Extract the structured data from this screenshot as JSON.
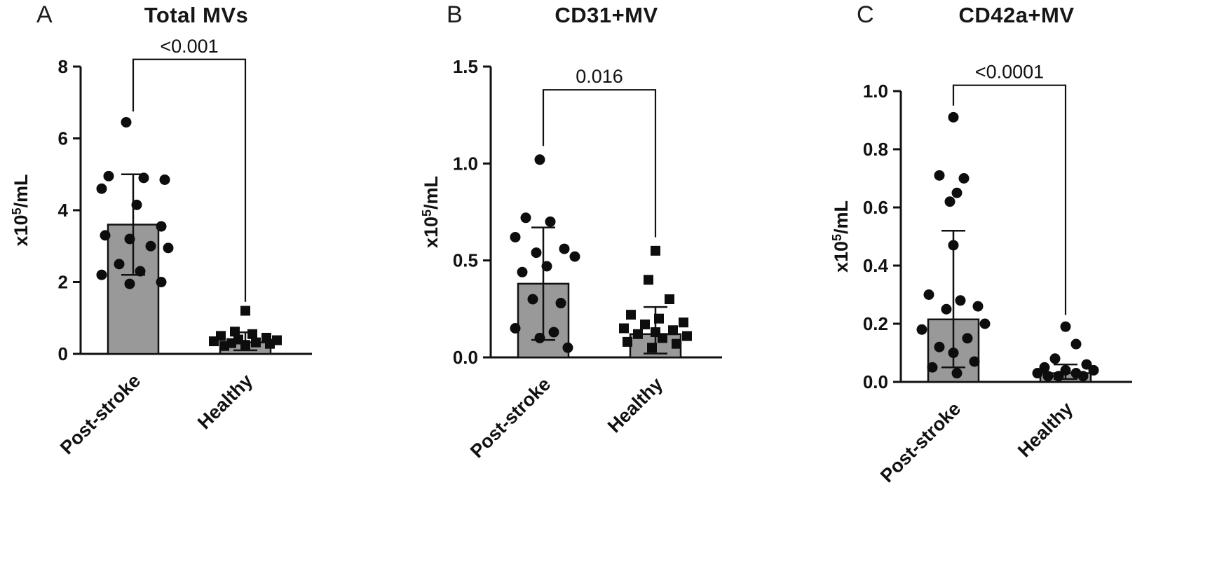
{
  "colors": {
    "bar_fill": "#999999",
    "line": "#111111",
    "marker": "#0d0d0d",
    "background": "#ffffff"
  },
  "chart_data": [
    {
      "type": "bar",
      "panel_letter": "A",
      "title": "Total MVs",
      "ylabel": "x10^5/mL",
      "ylim": [
        0,
        8
      ],
      "ytick_values": [
        0,
        2,
        4,
        6,
        8
      ],
      "ytick_labels": [
        "0",
        "2",
        "4",
        "6",
        "8"
      ],
      "grid": false,
      "significance": {
        "label": "<0.001",
        "bar_y": 8.2,
        "left_end": 6.75,
        "right_end": 1.45
      },
      "groups": [
        {
          "name": "Post-stroke",
          "marker": "circle",
          "bar_mean": 3.6,
          "err_low": 2.2,
          "err_high": 5.0,
          "points": [
            [
              -10,
              6.45
            ],
            [
              -35,
              4.95
            ],
            [
              15,
              4.9
            ],
            [
              45,
              4.85
            ],
            [
              -45,
              4.6
            ],
            [
              5,
              4.15
            ],
            [
              40,
              3.55
            ],
            [
              -40,
              3.3
            ],
            [
              -5,
              3.2
            ],
            [
              25,
              3.0
            ],
            [
              50,
              2.95
            ],
            [
              -20,
              2.5
            ],
            [
              10,
              2.3
            ],
            [
              -45,
              2.2
            ],
            [
              40,
              2.0
            ],
            [
              -5,
              1.95
            ]
          ]
        },
        {
          "name": "Healthy",
          "marker": "square",
          "bar_mean": 0.32,
          "err_low": 0.1,
          "err_high": 0.6,
          "points": [
            [
              0,
              1.2
            ],
            [
              -15,
              0.62
            ],
            [
              10,
              0.55
            ],
            [
              -35,
              0.5
            ],
            [
              30,
              0.45
            ],
            [
              -10,
              0.4
            ],
            [
              45,
              0.38
            ],
            [
              -45,
              0.35
            ],
            [
              15,
              0.32
            ],
            [
              -20,
              0.3
            ],
            [
              35,
              0.28
            ],
            [
              0,
              0.25
            ],
            [
              -30,
              0.22
            ]
          ]
        }
      ]
    },
    {
      "type": "bar",
      "panel_letter": "B",
      "title": "CD31+MV",
      "ylabel": "x10^5/mL",
      "ylim": [
        0,
        1.5
      ],
      "ytick_values": [
        0,
        0.5,
        1.0,
        1.5
      ],
      "ytick_labels": [
        "0.0",
        "0.5",
        "1.0",
        "1.5"
      ],
      "grid": false,
      "significance": {
        "label": "0.016",
        "bar_y": 1.38,
        "left_end": 1.09,
        "right_end": 0.62
      },
      "groups": [
        {
          "name": "Post-stroke",
          "marker": "circle",
          "bar_mean": 0.38,
          "err_low": 0.09,
          "err_high": 0.67,
          "points": [
            [
              -5,
              1.02
            ],
            [
              -25,
              0.72
            ],
            [
              10,
              0.7
            ],
            [
              -40,
              0.62
            ],
            [
              30,
              0.56
            ],
            [
              -10,
              0.54
            ],
            [
              45,
              0.52
            ],
            [
              5,
              0.47
            ],
            [
              -30,
              0.44
            ],
            [
              -15,
              0.3
            ],
            [
              25,
              0.28
            ],
            [
              -40,
              0.15
            ],
            [
              15,
              0.13
            ],
            [
              -5,
              0.1
            ],
            [
              35,
              0.05
            ]
          ]
        },
        {
          "name": "Healthy",
          "marker": "square",
          "bar_mean": 0.12,
          "err_low": 0.02,
          "err_high": 0.26,
          "points": [
            [
              0,
              0.55
            ],
            [
              -10,
              0.4
            ],
            [
              20,
              0.3
            ],
            [
              -35,
              0.22
            ],
            [
              5,
              0.2
            ],
            [
              40,
              0.18
            ],
            [
              -15,
              0.17
            ],
            [
              -45,
              0.15
            ],
            [
              25,
              0.14
            ],
            [
              0,
              0.13
            ],
            [
              -25,
              0.12
            ],
            [
              45,
              0.11
            ],
            [
              10,
              0.1
            ],
            [
              -40,
              0.08
            ],
            [
              30,
              0.07
            ],
            [
              -5,
              0.05
            ]
          ]
        }
      ]
    },
    {
      "type": "bar",
      "panel_letter": "C",
      "title": "CD42a+MV",
      "ylabel": "x10^5/mL",
      "ylim": [
        0,
        1.0
      ],
      "ytick_values": [
        0,
        0.2,
        0.4,
        0.6,
        0.8,
        1.0
      ],
      "ytick_labels": [
        "0.0",
        "0.2",
        "0.4",
        "0.6",
        "0.8",
        "1.0"
      ],
      "grid": false,
      "significance": {
        "label": "<0.0001",
        "bar_y": 1.02,
        "left_end": 0.95,
        "right_end": 0.23
      },
      "groups": [
        {
          "name": "Post-stroke",
          "marker": "circle",
          "bar_mean": 0.215,
          "err_low": 0.05,
          "err_high": 0.52,
          "points": [
            [
              0,
              0.91
            ],
            [
              -20,
              0.71
            ],
            [
              15,
              0.7
            ],
            [
              5,
              0.65
            ],
            [
              -5,
              0.62
            ],
            [
              0,
              0.47
            ],
            [
              -35,
              0.3
            ],
            [
              10,
              0.28
            ],
            [
              35,
              0.26
            ],
            [
              -10,
              0.25
            ],
            [
              45,
              0.2
            ],
            [
              -45,
              0.18
            ],
            [
              20,
              0.15
            ],
            [
              -20,
              0.12
            ],
            [
              0,
              0.1
            ],
            [
              30,
              0.07
            ],
            [
              -30,
              0.05
            ],
            [
              5,
              0.03
            ]
          ]
        },
        {
          "name": "Healthy",
          "marker": "circle",
          "bar_mean": 0.03,
          "err_low": 0.01,
          "err_high": 0.06,
          "points": [
            [
              0,
              0.19
            ],
            [
              15,
              0.13
            ],
            [
              -15,
              0.08
            ],
            [
              30,
              0.06
            ],
            [
              -30,
              0.05
            ],
            [
              0,
              0.04
            ],
            [
              40,
              0.04
            ],
            [
              -40,
              0.03
            ],
            [
              15,
              0.03
            ],
            [
              -10,
              0.02
            ],
            [
              25,
              0.02
            ],
            [
              -25,
              0.02
            ]
          ]
        }
      ]
    }
  ]
}
